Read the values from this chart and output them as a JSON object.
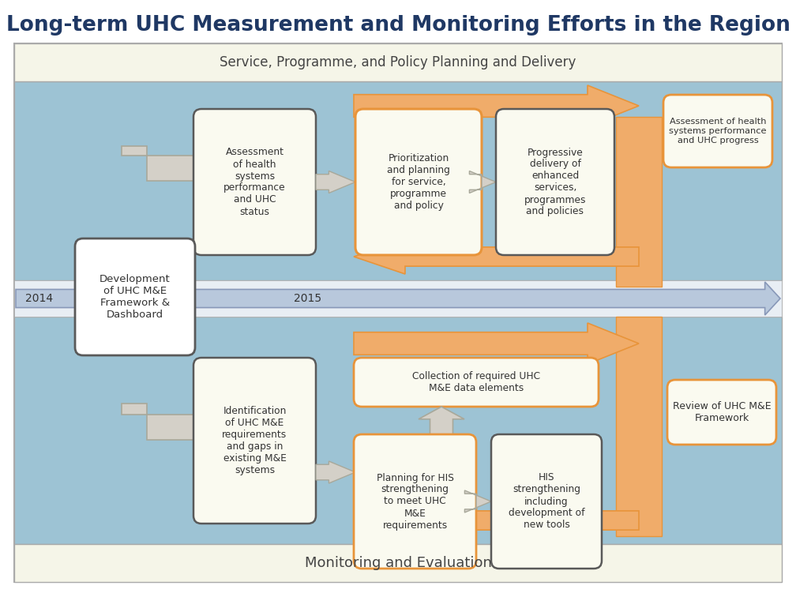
{
  "title": "Long-term UHC Measurement and Monitoring Efforts in the Region",
  "title_color": "#1F3864",
  "title_fontsize": 18,
  "bg_color": "#FFFFFF",
  "light_blue": "#9DC3D4",
  "cream_bg": "#F5F5E8",
  "orange_arrow": "#F0AC6A",
  "orange_border": "#E8943A",
  "white": "#FFFFFF",
  "dark_border": "#595959",
  "gray_arrow": "#D4D0C8",
  "gray_arrow_ec": "#A8A89A",
  "timeline_blue": "#B8C8DC",
  "timeline_ec": "#8898B8",
  "subtitle_top": "Service, Programme, and Policy Planning and Delivery",
  "subtitle_bottom": "Monitoring and Evaluation",
  "year_left": "2014",
  "year_right": "2015",
  "box1_top": "Assessment\nof health\nsystems\nperformance\nand UHC\nstatus",
  "box2_top": "Prioritization\nand planning\nfor service,\nprogramme\nand policy",
  "box3_top": "Progressive\ndelivery of\nenhanced\nservices,\nprogrammes\nand policies",
  "box4_top": "Assessment of health\nsystems performance\nand UHC progress",
  "box_left": "Development\nof UHC M&E\nFramework &\nDashboard",
  "box1_bot": "Identification\nof UHC M&E\nrequirements\nand gaps in\nexisting M&E\nsystems",
  "box2_bot_top": "Collection of required UHC\nM&E data elements",
  "box2_bot_btm": "Planning for HIS\nstrengthening\nto meet UHC\nM&E\nrequirements",
  "box3_bot": "HIS\nstrengthening\nincluding\ndevelopment of\nnew tools",
  "box4_bot": "Review of UHC M&E\nFramework"
}
